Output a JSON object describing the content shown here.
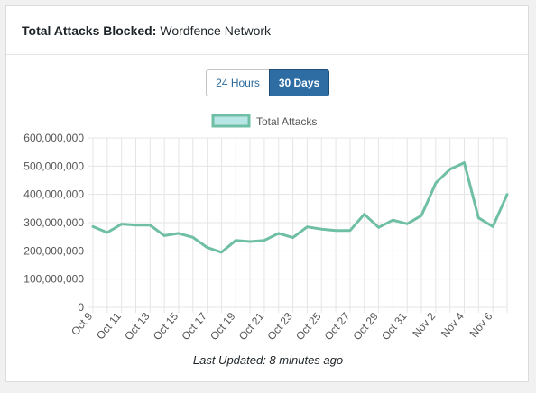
{
  "header": {
    "title_bold": "Total Attacks Blocked:",
    "title_rest": "Wordfence Network"
  },
  "toggle": {
    "options": [
      "24 Hours",
      "30 Days"
    ],
    "selected": "30 Days"
  },
  "footer": {
    "last_updated": "Last Updated: 8 minutes ago"
  },
  "colors": {
    "series_line": "#6fbfa4",
    "legend_fill": "#b8e6e6",
    "active_button": "#2e6da4",
    "grid": "#e5e5e5"
  },
  "chart_data": {
    "type": "line",
    "legend": [
      "Total Attacks"
    ],
    "x": [
      "Oct 9",
      "Oct 10",
      "Oct 11",
      "Oct 12",
      "Oct 13",
      "Oct 14",
      "Oct 15",
      "Oct 16",
      "Oct 17",
      "Oct 18",
      "Oct 19",
      "Oct 20",
      "Oct 21",
      "Oct 22",
      "Oct 23",
      "Oct 24",
      "Oct 25",
      "Oct 26",
      "Oct 27",
      "Oct 28",
      "Oct 29",
      "Oct 30",
      "Oct 31",
      "Nov 1",
      "Nov 2",
      "Nov 3",
      "Nov 4",
      "Nov 5",
      "Nov 6",
      "Nov 7"
    ],
    "x_tick_labels": [
      "Oct 9",
      "Oct 11",
      "Oct 13",
      "Oct 15",
      "Oct 17",
      "Oct 19",
      "Oct 21",
      "Oct 23",
      "Oct 25",
      "Oct 27",
      "Oct 29",
      "Oct 31",
      "Nov 2",
      "Nov 4",
      "Nov 6"
    ],
    "series": [
      {
        "name": "Total Attacks",
        "values": [
          286000000,
          265000000,
          295000000,
          291000000,
          291000000,
          254000000,
          262000000,
          248000000,
          212000000,
          195000000,
          237000000,
          233000000,
          237000000,
          262000000,
          247000000,
          285000000,
          277000000,
          272000000,
          272000000,
          330000000,
          283000000,
          309000000,
          296000000,
          325000000,
          440000000,
          489000000,
          512000000,
          317000000,
          286000000,
          400000000
        ]
      }
    ],
    "y_ticks": [
      "0",
      "100,000,000",
      "200,000,000",
      "300,000,000",
      "400,000,000",
      "500,000,000",
      "600,000,000"
    ],
    "ylim": [
      0,
      600000000
    ],
    "grid": true,
    "legend_position": "top"
  }
}
